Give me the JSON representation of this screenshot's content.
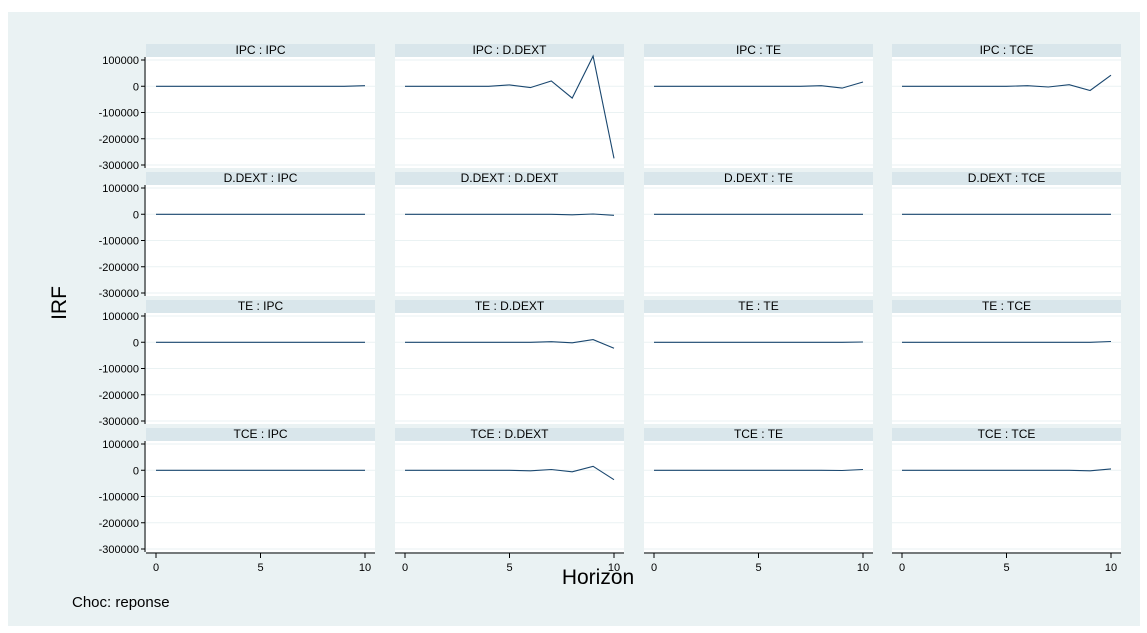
{
  "chart_data": {
    "type": "line",
    "ylabel": "IRF",
    "xlabel": "Horizon",
    "note": "Choc: reponse",
    "xlim": [
      0,
      10
    ],
    "ylim": [
      -300000,
      100000
    ],
    "x_ticks": [
      0,
      5,
      10
    ],
    "y_ticks": [
      100000,
      0,
      -100000,
      -200000,
      -300000
    ],
    "y_tick_labels": [
      "100000",
      "0",
      "-100000",
      "-200000",
      "-300000"
    ],
    "x": [
      0,
      1,
      2,
      3,
      4,
      5,
      6,
      7,
      8,
      9,
      10
    ],
    "grid": "horizontal",
    "colors": {
      "background": "#eaf2f3",
      "panel": "#ffffff",
      "title_strip": "#d9e6eb",
      "gridline": "#eaf2f3",
      "line": "#1a476f"
    },
    "panels": [
      {
        "title": "IPC : IPC",
        "values": [
          0,
          0,
          0,
          0,
          0,
          0,
          0,
          0,
          0,
          0,
          2000
        ]
      },
      {
        "title": "IPC : D.DEXT",
        "values": [
          0,
          0,
          0,
          0,
          0,
          5000,
          -5000,
          20000,
          -45000,
          115000,
          -275000
        ]
      },
      {
        "title": "IPC : TE",
        "values": [
          0,
          0,
          0,
          0,
          0,
          0,
          0,
          0,
          2000,
          -7000,
          16000
        ]
      },
      {
        "title": "IPC : TCE",
        "values": [
          0,
          0,
          0,
          0,
          0,
          0,
          2000,
          -3000,
          6000,
          -16000,
          42000
        ]
      },
      {
        "title": "D.DEXT : IPC",
        "values": [
          0,
          0,
          0,
          0,
          0,
          0,
          0,
          0,
          0,
          0,
          0
        ]
      },
      {
        "title": "D.DEXT : D.DEXT",
        "values": [
          0,
          0,
          0,
          0,
          0,
          0,
          0,
          0,
          -2000,
          1000,
          -4000
        ]
      },
      {
        "title": "D.DEXT : TE",
        "values": [
          0,
          0,
          0,
          0,
          0,
          0,
          0,
          0,
          0,
          0,
          0
        ]
      },
      {
        "title": "D.DEXT : TCE",
        "values": [
          0,
          0,
          0,
          0,
          0,
          0,
          0,
          0,
          0,
          0,
          0
        ]
      },
      {
        "title": "TE : IPC",
        "values": [
          0,
          0,
          0,
          0,
          0,
          0,
          0,
          0,
          0,
          0,
          0
        ]
      },
      {
        "title": "TE : D.DEXT",
        "values": [
          0,
          0,
          0,
          0,
          0,
          0,
          0,
          2000,
          -2000,
          10000,
          -23000
        ]
      },
      {
        "title": "TE : TE",
        "values": [
          0,
          0,
          0,
          0,
          0,
          0,
          0,
          0,
          0,
          0,
          1000
        ]
      },
      {
        "title": "TE : TCE",
        "values": [
          0,
          0,
          0,
          0,
          0,
          0,
          0,
          0,
          0,
          0,
          3000
        ]
      },
      {
        "title": "TCE : IPC",
        "values": [
          0,
          0,
          0,
          0,
          0,
          0,
          0,
          0,
          0,
          0,
          0
        ]
      },
      {
        "title": "TCE : D.DEXT",
        "values": [
          0,
          0,
          0,
          0,
          0,
          0,
          -2000,
          3000,
          -6000,
          15000,
          -36000
        ]
      },
      {
        "title": "TCE : TE",
        "values": [
          0,
          0,
          0,
          0,
          0,
          0,
          0,
          0,
          0,
          -1000,
          3000
        ]
      },
      {
        "title": "TCE : TCE",
        "values": [
          0,
          0,
          0,
          0,
          0,
          0,
          0,
          0,
          0,
          -2000,
          5000
        ]
      }
    ]
  }
}
